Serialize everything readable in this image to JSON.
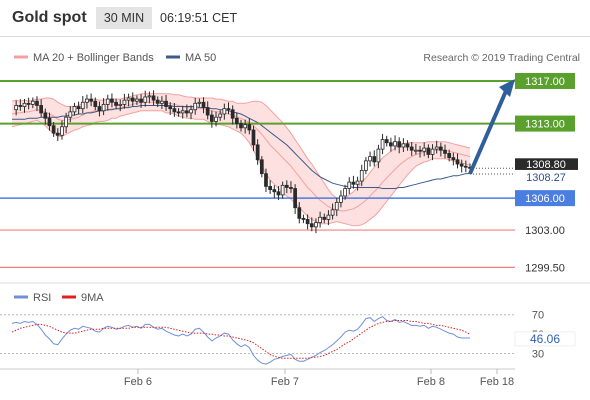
{
  "header": {
    "title": "Gold spot",
    "timeframe": "30 MIN",
    "time": "06:19:51 CET"
  },
  "legend": {
    "bollinger": "MA 20 + Bollinger Bands",
    "ma50": "MA 50",
    "source": "Research © 2019 Trading Central"
  },
  "rsi_legend": {
    "rsi": "RSI",
    "ma": "9MA"
  },
  "colors": {
    "candle": "#2a2a2a",
    "bollinger": "#f4a0a0",
    "band_fill": "#fde0e0",
    "ma50": "#3c5a8a",
    "resistance": "#5aa02c",
    "support": "#4a7ee0",
    "level_red": "#f08080",
    "arrow": "#2f5f9b",
    "rsi": "#6f8fdc",
    "rsi_ma": "#e02020",
    "current": "#2a2a2a"
  },
  "chart_data": [
    {
      "type": "candlestick",
      "title": "Gold spot",
      "ylim": [
        1298.5,
        1318.5
      ],
      "x_ticks": [
        "Feb 6",
        "Feb 7",
        "Feb 8",
        "Feb 18"
      ],
      "series": [
        {
          "name": "MA 20 + Bollinger Bands"
        },
        {
          "name": "MA 50"
        }
      ],
      "levels": [
        {
          "value": 1317.0,
          "label": "1317.00",
          "kind": "resistance"
        },
        {
          "value": 1313.0,
          "label": "1313.00",
          "kind": "resistance"
        },
        {
          "value": 1306.0,
          "label": "1306.00",
          "kind": "support"
        },
        {
          "value": 1303.0,
          "label": "1303.00",
          "kind": "support"
        },
        {
          "value": 1299.5,
          "label": "1299.50",
          "kind": "support"
        }
      ],
      "current_price": "1308.80",
      "pivot": "1308.27",
      "forecast": {
        "from": 1308.3,
        "to": 1317.0
      },
      "price_path": [
        1314.3,
        1314.7,
        1314.6,
        1314.9,
        1314.8,
        1315.1,
        1314.7,
        1314.0,
        1313.5,
        1312.8,
        1312.1,
        1311.9,
        1312.7,
        1313.6,
        1314.1,
        1314.6,
        1314.4,
        1315.0,
        1315.3,
        1315.1,
        1314.6,
        1314.2,
        1314.8,
        1315.3,
        1315.0,
        1314.7,
        1314.8,
        1315.2,
        1315.4,
        1315.1,
        1315.3,
        1315.0,
        1315.5,
        1315.6,
        1315.2,
        1314.9,
        1315.1,
        1314.6,
        1314.4,
        1314.1,
        1314.0,
        1314.2,
        1314.0,
        1314.3,
        1314.9,
        1315.0,
        1314.5,
        1313.8,
        1313.2,
        1313.6,
        1313.9,
        1314.4,
        1314.3,
        1313.5,
        1313.0,
        1312.6,
        1312.9,
        1312.4,
        1311.0,
        1309.6,
        1308.3,
        1307.1,
        1306.8,
        1306.6,
        1306.3,
        1307.2,
        1307.0,
        1306.9,
        1305.1,
        1304.1,
        1304.0,
        1303.6,
        1303.3,
        1303.7,
        1304.2,
        1304.0,
        1304.4,
        1304.9,
        1305.6,
        1306.2,
        1306.9,
        1307.5,
        1307.3,
        1307.6,
        1308.6,
        1309.5,
        1309.9,
        1309.4,
        1310.6,
        1311.5,
        1311.2,
        1310.9,
        1311.3,
        1310.8,
        1311.1,
        1310.8,
        1310.5,
        1310.5,
        1310.4,
        1310.7,
        1310.1,
        1310.6,
        1310.8,
        1310.5,
        1310.2,
        1309.8,
        1309.6,
        1309.2,
        1309.0,
        1308.9,
        1308.8
      ],
      "bb_mid": [
        1313.9,
        1314.0,
        1314.0,
        1314.1,
        1314.1,
        1314.2,
        1314.3,
        1314.2,
        1314.1,
        1313.9,
        1313.7,
        1313.4,
        1313.3,
        1313.3,
        1313.4,
        1313.5,
        1313.6,
        1313.8,
        1314.0,
        1314.1,
        1314.2,
        1314.2,
        1314.2,
        1314.3,
        1314.4,
        1314.4,
        1314.5,
        1314.6,
        1314.7,
        1314.8,
        1314.9,
        1315.0,
        1315.0,
        1315.0,
        1315.0,
        1315.0,
        1315.0,
        1314.9,
        1314.9,
        1314.8,
        1314.7,
        1314.6,
        1314.5,
        1314.5,
        1314.4,
        1314.4,
        1314.4,
        1314.3,
        1314.2,
        1314.1,
        1314.1,
        1314.0,
        1313.9,
        1313.8,
        1313.6,
        1313.5,
        1313.3,
        1313.1,
        1312.8,
        1312.4,
        1312.0,
        1311.5,
        1311.0,
        1310.6,
        1310.2,
        1309.8,
        1309.4,
        1309.0,
        1308.5,
        1308.0,
        1307.5,
        1307.0,
        1306.6,
        1306.2,
        1305.8,
        1305.5,
        1305.2,
        1305.0,
        1304.9,
        1304.8,
        1304.8,
        1304.9,
        1305.0,
        1305.2,
        1305.5,
        1305.8,
        1306.2,
        1306.6,
        1307.0,
        1307.5,
        1307.9,
        1308.3,
        1308.7,
        1309.1,
        1309.4,
        1309.7,
        1309.9,
        1310.1,
        1310.2,
        1310.3,
        1310.4,
        1310.5,
        1310.5,
        1310.5,
        1310.5,
        1310.4,
        1310.3,
        1310.2,
        1310.1,
        1310.0,
        1309.9
      ],
      "bb_width": [
        1.2,
        1.2,
        1.1,
        1.1,
        1.0,
        1.0,
        1.0,
        1.1,
        1.3,
        1.5,
        1.6,
        1.6,
        1.5,
        1.3,
        1.2,
        1.1,
        1.1,
        1.1,
        1.2,
        1.2,
        1.1,
        1.0,
        1.0,
        1.0,
        0.9,
        0.9,
        0.8,
        0.8,
        0.8,
        0.8,
        0.8,
        0.8,
        0.8,
        0.8,
        0.8,
        0.8,
        0.8,
        0.9,
        0.9,
        0.9,
        1.0,
        1.0,
        1.0,
        1.0,
        1.0,
        1.0,
        1.0,
        1.1,
        1.2,
        1.2,
        1.2,
        1.2,
        1.2,
        1.3,
        1.3,
        1.4,
        1.6,
        1.9,
        2.3,
        2.7,
        3.0,
        3.2,
        3.3,
        3.3,
        3.3,
        3.3,
        3.2,
        3.1,
        3.0,
        2.9,
        2.8,
        2.7,
        2.6,
        2.4,
        2.2,
        1.9,
        1.6,
        1.3,
        1.1,
        1.1,
        1.2,
        1.4,
        1.6,
        1.8,
        2.0,
        2.1,
        2.2,
        2.3,
        2.3,
        2.3,
        2.2,
        2.1,
        2.0,
        1.9,
        1.7,
        1.5,
        1.3,
        1.1,
        1.0,
        0.9,
        0.9,
        0.8,
        0.8,
        0.8,
        0.8,
        0.8,
        0.8,
        0.8,
        0.8,
        0.8,
        0.8
      ],
      "ma50": [
        1313.4,
        1313.4,
        1313.4,
        1313.4,
        1313.5,
        1313.5,
        1313.5,
        1313.6,
        1313.6,
        1313.6,
        1313.6,
        1313.6,
        1313.7,
        1313.7,
        1313.8,
        1313.8,
        1313.9,
        1313.9,
        1314.0,
        1314.0,
        1314.1,
        1314.2,
        1314.2,
        1314.3,
        1314.3,
        1314.4,
        1314.4,
        1314.5,
        1314.5,
        1314.6,
        1314.6,
        1314.7,
        1314.7,
        1314.7,
        1314.7,
        1314.7,
        1314.7,
        1314.7,
        1314.7,
        1314.6,
        1314.6,
        1314.6,
        1314.6,
        1314.6,
        1314.6,
        1314.5,
        1314.5,
        1314.5,
        1314.4,
        1314.4,
        1314.3,
        1314.3,
        1314.2,
        1314.1,
        1314.0,
        1313.9,
        1313.7,
        1313.5,
        1313.3,
        1313.1,
        1312.8,
        1312.5,
        1312.2,
        1311.9,
        1311.6,
        1311.3,
        1311.0,
        1310.6,
        1310.2,
        1309.8,
        1309.4,
        1309.0,
        1308.6,
        1308.3,
        1308.0,
        1307.8,
        1307.6,
        1307.4,
        1307.3,
        1307.2,
        1307.1,
        1307.1,
        1307.0,
        1307.0,
        1307.0,
        1307.0,
        1307.0,
        1307.0,
        1307.0,
        1306.9,
        1306.9,
        1306.9,
        1306.9,
        1307.0,
        1307.0,
        1307.1,
        1307.2,
        1307.3,
        1307.4,
        1307.5,
        1307.6,
        1307.7,
        1307.8,
        1307.8,
        1307.9,
        1308.0,
        1308.1,
        1308.1,
        1308.2,
        1308.3,
        1308.3
      ]
    },
    {
      "type": "line",
      "title": "RSI",
      "ylim": [
        15,
        80
      ],
      "y_ticks": [
        30,
        50,
        70
      ],
      "current": "46.06",
      "series": [
        {
          "name": "RSI",
          "values": [
            61,
            62,
            61,
            63,
            62,
            63,
            60,
            55,
            49,
            45,
            40,
            39,
            45,
            50,
            54,
            56,
            55,
            58,
            57,
            56,
            53,
            52,
            56,
            58,
            57,
            55,
            56,
            58,
            59,
            57,
            58,
            56,
            60,
            60,
            57,
            55,
            56,
            53,
            51,
            49,
            48,
            50,
            48,
            50,
            55,
            56,
            52,
            47,
            43,
            46,
            48,
            51,
            50,
            44,
            40,
            37,
            39,
            36,
            28,
            23,
            20,
            19,
            21,
            24,
            25,
            27,
            28,
            29,
            24,
            22,
            22,
            24,
            26,
            28,
            31,
            33,
            36,
            39,
            43,
            47,
            52,
            54,
            53,
            55,
            60,
            66,
            67,
            63,
            66,
            68,
            64,
            63,
            65,
            62,
            63,
            61,
            59,
            59,
            58,
            59,
            56,
            58,
            57,
            55,
            53,
            51,
            50,
            47,
            46,
            46,
            46
          ]
        },
        {
          "name": "9MA",
          "values": [
            52,
            54,
            56,
            57,
            58,
            59,
            60,
            60,
            59,
            58,
            56,
            54,
            52,
            51,
            51,
            51,
            52,
            53,
            54,
            55,
            55,
            55,
            56,
            56,
            56,
            56,
            56,
            56,
            56,
            57,
            57,
            57,
            57,
            57,
            57,
            57,
            57,
            57,
            56,
            55,
            54,
            53,
            52,
            51,
            51,
            51,
            51,
            50,
            50,
            49,
            49,
            48,
            48,
            47,
            46,
            45,
            44,
            43,
            41,
            38,
            35,
            32,
            29,
            27,
            26,
            25,
            25,
            25,
            25,
            25,
            25,
            25,
            26,
            26,
            27,
            28,
            30,
            32,
            34,
            37,
            40,
            42,
            45,
            48,
            51,
            54,
            57,
            59,
            61,
            62,
            63,
            63,
            64,
            64,
            64,
            64,
            63,
            63,
            62,
            61,
            61,
            60,
            59,
            59,
            58,
            57,
            56,
            55,
            54,
            52,
            50
          ]
        }
      ]
    }
  ]
}
